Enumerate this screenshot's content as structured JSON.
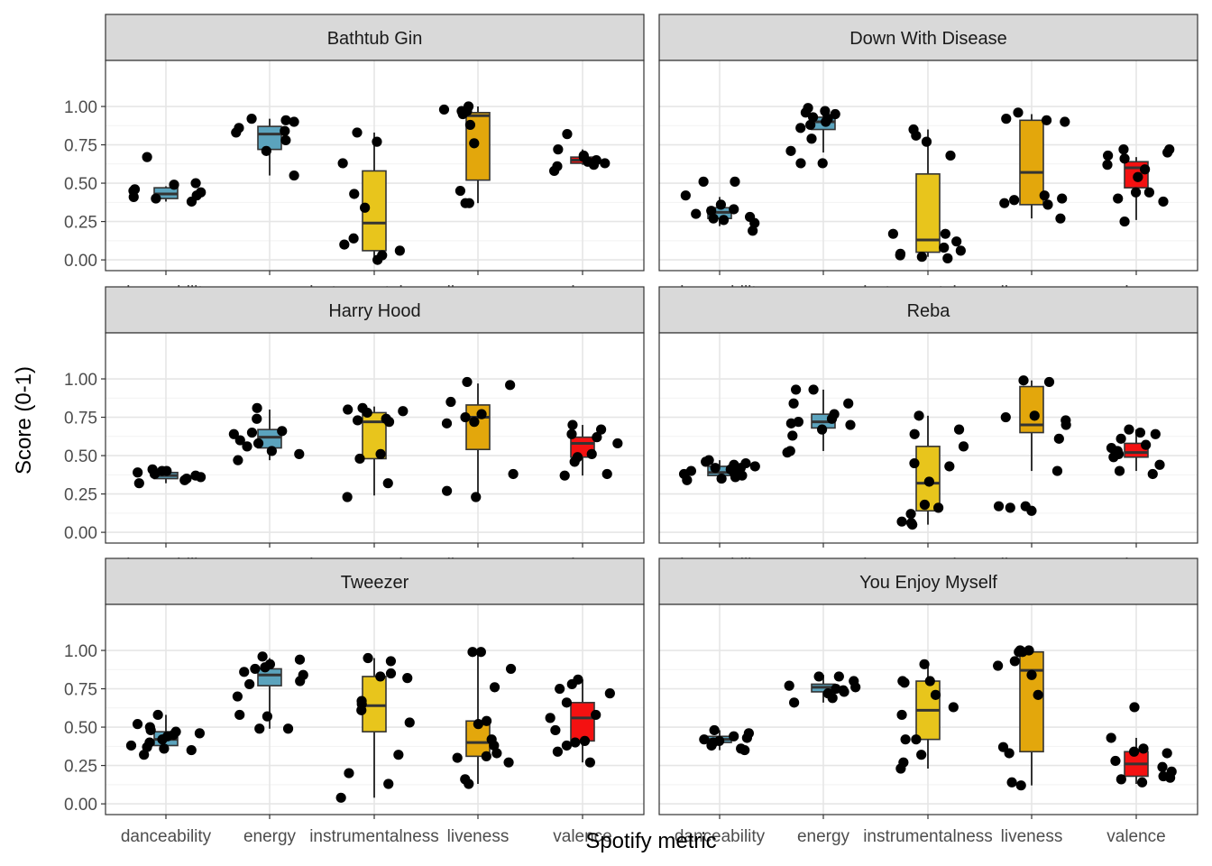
{
  "chart_data": {
    "type": "boxplot",
    "xlabel": "Spotify metric",
    "ylabel": "Score (0-1)",
    "ylim": [
      -0.07,
      1.3
    ],
    "y_ticks": [
      "0.00",
      "0.25",
      "0.50",
      "0.75",
      "1.00"
    ],
    "y_tick_values": [
      0,
      0.25,
      0.5,
      0.75,
      1.0
    ],
    "categories": [
      "danceability",
      "energy",
      "instrumentalness",
      "liveness",
      "valence"
    ],
    "category_colors": [
      "#5ba3bd",
      "#5ba3bd",
      "#e8c51c",
      "#e3a70c",
      "#f41111"
    ],
    "grid": true,
    "panels": [
      {
        "title": "Bathtub Gin",
        "boxes": [
          {
            "min": 0.38,
            "q1": 0.4,
            "median": 0.43,
            "q3": 0.47,
            "max": 0.48
          },
          {
            "min": 0.55,
            "q1": 0.72,
            "median": 0.82,
            "q3": 0.87,
            "max": 0.92
          },
          {
            "min": 0.0,
            "q1": 0.06,
            "median": 0.24,
            "q3": 0.58,
            "max": 0.83
          },
          {
            "min": 0.37,
            "q1": 0.52,
            "median": 0.94,
            "q3": 0.96,
            "max": 1.0
          },
          {
            "min": 0.62,
            "q1": 0.63,
            "median": 0.65,
            "q3": 0.67,
            "max": 0.72
          }
        ],
        "points": [
          [
            0.67,
            0.5,
            0.49,
            0.42,
            0.45,
            0.38,
            0.4,
            0.41,
            0.46,
            0.44
          ],
          [
            0.92,
            0.91,
            0.9,
            0.86,
            0.84,
            0.83,
            0.78,
            0.71,
            0.55
          ],
          [
            0.83,
            0.77,
            0.63,
            0.43,
            0.34,
            0.14,
            0.1,
            0.06,
            0.03,
            0.0
          ],
          [
            0.97,
            0.97,
            0.95,
            1.0,
            0.98,
            0.88,
            0.76,
            0.45,
            0.37,
            0.37
          ],
          [
            0.82,
            0.72,
            0.68,
            0.67,
            0.65,
            0.64,
            0.63,
            0.62,
            0.61,
            0.58
          ]
        ]
      },
      {
        "title": "Down With Disease",
        "boxes": [
          {
            "min": 0.22,
            "q1": 0.27,
            "median": 0.31,
            "q3": 0.34,
            "max": 0.41
          },
          {
            "min": 0.7,
            "q1": 0.85,
            "median": 0.9,
            "q3": 0.93,
            "max": 0.97
          },
          {
            "min": 0.02,
            "q1": 0.05,
            "median": 0.13,
            "q3": 0.56,
            "max": 0.85
          },
          {
            "min": 0.27,
            "q1": 0.36,
            "median": 0.57,
            "q3": 0.91,
            "max": 0.95
          },
          {
            "min": 0.26,
            "q1": 0.47,
            "median": 0.6,
            "q3": 0.64,
            "max": 0.67
          }
        ],
        "points": [
          [
            0.51,
            0.51,
            0.42,
            0.36,
            0.33,
            0.32,
            0.3,
            0.28,
            0.27,
            0.26,
            0.24,
            0.19
          ],
          [
            0.99,
            0.97,
            0.96,
            0.95,
            0.93,
            0.92,
            0.9,
            0.88,
            0.86,
            0.79,
            0.71,
            0.63,
            0.63
          ],
          [
            0.85,
            0.81,
            0.77,
            0.68,
            0.17,
            0.17,
            0.12,
            0.08,
            0.06,
            0.04,
            0.03,
            0.02,
            0.01
          ],
          [
            0.96,
            0.92,
            0.91,
            0.9,
            0.42,
            0.4,
            0.39,
            0.37,
            0.36,
            0.27
          ],
          [
            0.72,
            0.72,
            0.7,
            0.68,
            0.66,
            0.62,
            0.59,
            0.54,
            0.44,
            0.44,
            0.4,
            0.38,
            0.25
          ]
        ]
      },
      {
        "title": "Harry Hood",
        "boxes": [
          {
            "min": 0.32,
            "q1": 0.35,
            "median": 0.37,
            "q3": 0.39,
            "max": 0.41
          },
          {
            "min": 0.47,
            "q1": 0.55,
            "median": 0.62,
            "q3": 0.67,
            "max": 0.8
          },
          {
            "min": 0.24,
            "q1": 0.48,
            "median": 0.72,
            "q3": 0.78,
            "max": 0.82
          },
          {
            "min": 0.23,
            "q1": 0.54,
            "median": 0.75,
            "q3": 0.83,
            "max": 0.97
          },
          {
            "min": 0.37,
            "q1": 0.49,
            "median": 0.58,
            "q3": 0.62,
            "max": 0.7
          }
        ],
        "points": [
          [
            0.41,
            0.4,
            0.4,
            0.39,
            0.38,
            0.37,
            0.36,
            0.35,
            0.34,
            0.32
          ],
          [
            0.81,
            0.74,
            0.66,
            0.65,
            0.64,
            0.6,
            0.58,
            0.56,
            0.53,
            0.51,
            0.47
          ],
          [
            0.81,
            0.8,
            0.79,
            0.78,
            0.74,
            0.73,
            0.72,
            0.51,
            0.48,
            0.32,
            0.23
          ],
          [
            0.98,
            0.96,
            0.85,
            0.77,
            0.75,
            0.72,
            0.71,
            0.38,
            0.27,
            0.23
          ],
          [
            0.7,
            0.67,
            0.64,
            0.62,
            0.58,
            0.51,
            0.49,
            0.46,
            0.38,
            0.37
          ]
        ]
      },
      {
        "title": "Reba",
        "boxes": [
          {
            "min": 0.34,
            "q1": 0.37,
            "median": 0.39,
            "q3": 0.43,
            "max": 0.47
          },
          {
            "min": 0.53,
            "q1": 0.68,
            "median": 0.72,
            "q3": 0.77,
            "max": 0.93
          },
          {
            "min": 0.05,
            "q1": 0.14,
            "median": 0.32,
            "q3": 0.56,
            "max": 0.76
          },
          {
            "min": 0.4,
            "q1": 0.65,
            "median": 0.7,
            "q3": 0.95,
            "max": 0.99
          },
          {
            "min": 0.4,
            "q1": 0.49,
            "median": 0.52,
            "q3": 0.58,
            "max": 0.67
          }
        ],
        "points": [
          [
            0.47,
            0.46,
            0.45,
            0.44,
            0.43,
            0.42,
            0.42,
            0.41,
            0.4,
            0.39,
            0.38,
            0.37,
            0.36,
            0.35,
            0.34
          ],
          [
            0.93,
            0.93,
            0.84,
            0.84,
            0.77,
            0.74,
            0.72,
            0.71,
            0.7,
            0.67,
            0.63,
            0.53,
            0.52
          ],
          [
            0.76,
            0.67,
            0.64,
            0.56,
            0.45,
            0.43,
            0.33,
            0.18,
            0.16,
            0.12,
            0.07,
            0.06,
            0.05
          ],
          [
            0.99,
            0.98,
            0.76,
            0.75,
            0.73,
            0.7,
            0.61,
            0.4,
            0.17,
            0.17,
            0.16,
            0.14
          ],
          [
            0.67,
            0.65,
            0.64,
            0.61,
            0.57,
            0.55,
            0.53,
            0.51,
            0.49,
            0.44,
            0.4,
            0.38
          ]
        ]
      },
      {
        "title": "Tweezer",
        "boxes": [
          {
            "min": 0.33,
            "q1": 0.38,
            "median": 0.42,
            "q3": 0.47,
            "max": 0.58
          },
          {
            "min": 0.49,
            "q1": 0.77,
            "median": 0.84,
            "q3": 0.88,
            "max": 0.95
          },
          {
            "min": 0.04,
            "q1": 0.47,
            "median": 0.64,
            "q3": 0.83,
            "max": 0.95
          },
          {
            "min": 0.13,
            "q1": 0.31,
            "median": 0.4,
            "q3": 0.54,
            "max": 0.99
          },
          {
            "min": 0.27,
            "q1": 0.41,
            "median": 0.56,
            "q3": 0.66,
            "max": 0.81
          }
        ],
        "points": [
          [
            0.58,
            0.52,
            0.5,
            0.48,
            0.47,
            0.46,
            0.45,
            0.44,
            0.42,
            0.4,
            0.38,
            0.37,
            0.36,
            0.35,
            0.32
          ],
          [
            0.96,
            0.94,
            0.91,
            0.89,
            0.88,
            0.86,
            0.84,
            0.8,
            0.78,
            0.7,
            0.58,
            0.57,
            0.49,
            0.49
          ],
          [
            0.95,
            0.93,
            0.85,
            0.83,
            0.82,
            0.67,
            0.65,
            0.61,
            0.53,
            0.32,
            0.2,
            0.13,
            0.04
          ],
          [
            0.99,
            0.99,
            0.88,
            0.76,
            0.54,
            0.52,
            0.42,
            0.38,
            0.33,
            0.31,
            0.3,
            0.27,
            0.16,
            0.13
          ],
          [
            0.81,
            0.78,
            0.75,
            0.72,
            0.66,
            0.58,
            0.56,
            0.48,
            0.41,
            0.4,
            0.38,
            0.34,
            0.27
          ]
        ]
      },
      {
        "title": "You Enjoy Myself",
        "boxes": [
          {
            "min": 0.35,
            "q1": 0.4,
            "median": 0.42,
            "q3": 0.44,
            "max": 0.48
          },
          {
            "min": 0.66,
            "q1": 0.73,
            "median": 0.76,
            "q3": 0.78,
            "max": 0.84
          },
          {
            "min": 0.23,
            "q1": 0.42,
            "median": 0.61,
            "q3": 0.8,
            "max": 0.91
          },
          {
            "min": 0.12,
            "q1": 0.34,
            "median": 0.87,
            "q3": 0.99,
            "max": 1.0
          },
          {
            "min": 0.13,
            "q1": 0.18,
            "median": 0.26,
            "q3": 0.34,
            "max": 0.43
          }
        ],
        "points": [
          [
            0.48,
            0.46,
            0.44,
            0.43,
            0.42,
            0.41,
            0.4,
            0.38,
            0.36,
            0.35
          ],
          [
            0.83,
            0.83,
            0.8,
            0.77,
            0.76,
            0.75,
            0.74,
            0.73,
            0.72,
            0.69,
            0.66
          ],
          [
            0.91,
            0.8,
            0.8,
            0.79,
            0.71,
            0.63,
            0.58,
            0.42,
            0.42,
            0.32,
            0.27,
            0.23
          ],
          [
            1.0,
            1.0,
            0.99,
            0.99,
            0.93,
            0.9,
            0.84,
            0.71,
            0.37,
            0.33,
            0.14,
            0.12
          ],
          [
            0.63,
            0.43,
            0.36,
            0.34,
            0.33,
            0.28,
            0.24,
            0.21,
            0.18,
            0.17,
            0.16,
            0.14
          ]
        ]
      }
    ]
  }
}
